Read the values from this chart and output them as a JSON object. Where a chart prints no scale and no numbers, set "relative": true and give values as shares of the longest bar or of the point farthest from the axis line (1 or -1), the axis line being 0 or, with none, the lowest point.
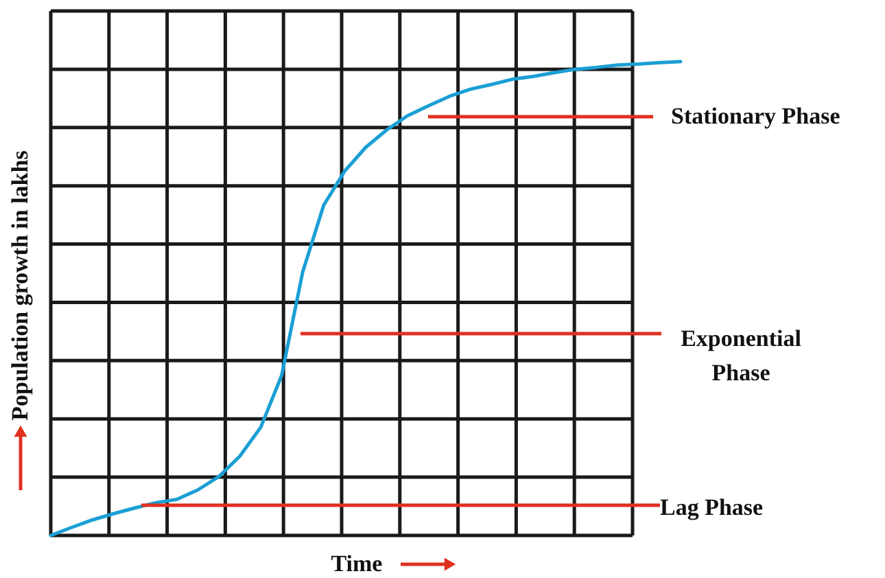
{
  "chart_data": {
    "type": "line",
    "relative": true,
    "xlabel": "Time",
    "ylabel": "Population growth in lakhs",
    "annotations": [
      "Stationary Phase",
      "Exponential Phase",
      "Lag Phase"
    ],
    "categories": [
      null,
      null,
      null,
      null,
      null,
      null,
      null,
      null,
      null,
      null,
      null,
      null,
      null,
      null,
      null,
      null,
      null,
      null,
      null,
      null,
      null,
      null,
      null,
      null,
      null,
      null,
      null,
      null,
      null,
      null,
      null
    ],
    "grid": true,
    "line_style": "solid",
    "series": [
      {
        "color": "#1a9fd4",
        "values": [
          0,
          0.017,
          0.033,
          0.046,
          0.058,
          0.069,
          0.076,
          0.096,
          0.124,
          0.167,
          0.228,
          0.338,
          0.556,
          0.697,
          0.769,
          0.819,
          0.856,
          0.886,
          0.907,
          0.927,
          0.942,
          0.952,
          0.963,
          0.969,
          0.977,
          0.984,
          0.988,
          0.993,
          0.995,
          0.998,
          1
        ]
      }
    ]
  }
}
